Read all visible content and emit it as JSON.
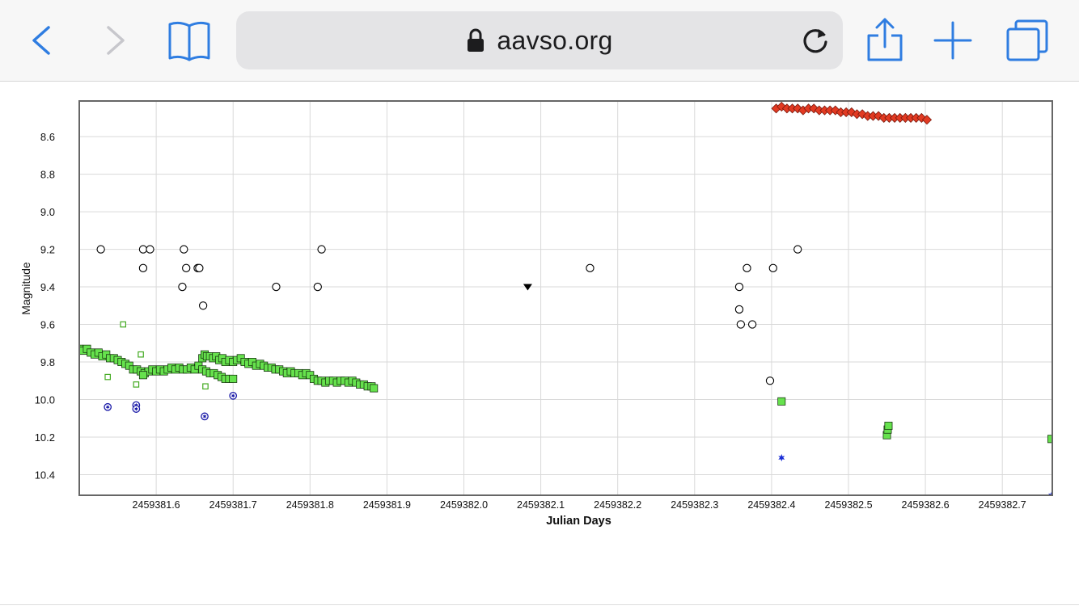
{
  "browser": {
    "url": "aavso.org",
    "icons": {
      "back": "chevron-left-icon",
      "forward": "chevron-right-icon",
      "bookmarks": "book-icon",
      "secure": "lock-icon",
      "reload": "reload-icon",
      "share": "share-icon",
      "new_tab": "plus-icon",
      "tabs": "tabs-icon"
    },
    "accent_color": "#2f7de1",
    "disabled_color": "#c7c7cc"
  },
  "chart_data": {
    "type": "scatter",
    "xlabel": "Julian Days",
    "ylabel": "Magnitude",
    "xlim": [
      2459381.5,
      2459382.765
    ],
    "ylim": [
      10.51,
      8.41
    ],
    "y_inverted": true,
    "grid": true,
    "x_ticks": [
      {
        "value": 2459381.6,
        "label": "2459381.6"
      },
      {
        "value": 2459381.7,
        "label": "2459381.7"
      },
      {
        "value": 2459381.8,
        "label": "2459381.8"
      },
      {
        "value": 2459381.9,
        "label": "2459381.9"
      },
      {
        "value": 2459382.0,
        "label": "2459382.0"
      },
      {
        "value": 2459382.1,
        "label": "2459382.1"
      },
      {
        "value": 2459382.2,
        "label": "2459382.2"
      },
      {
        "value": 2459382.3,
        "label": "2459382.3"
      },
      {
        "value": 2459382.4,
        "label": "2459382.4"
      },
      {
        "value": 2459382.5,
        "label": "2459382.5"
      },
      {
        "value": 2459382.6,
        "label": "2459382.6"
      },
      {
        "value": 2459382.7,
        "label": "2459382.7"
      }
    ],
    "y_ticks": [
      {
        "value": 8.6,
        "label": "8.6"
      },
      {
        "value": 8.8,
        "label": "8.8"
      },
      {
        "value": 9.0,
        "label": "9.0"
      },
      {
        "value": 9.2,
        "label": "9.2"
      },
      {
        "value": 9.4,
        "label": "9.4"
      },
      {
        "value": 9.6,
        "label": "9.6"
      },
      {
        "value": 9.8,
        "label": "9.8"
      },
      {
        "value": 10.0,
        "label": "10.0"
      },
      {
        "value": 10.2,
        "label": "10.2"
      },
      {
        "value": 10.4,
        "label": "10.4"
      }
    ],
    "series": [
      {
        "marker": "open-circle",
        "color": "#000000",
        "points": [
          [
            2459381.528,
            9.2
          ],
          [
            2459381.583,
            9.2
          ],
          [
            2459381.592,
            9.2
          ],
          [
            2459381.636,
            9.2
          ],
          [
            2459381.583,
            9.3
          ],
          [
            2459381.639,
            9.3
          ],
          [
            2459381.654,
            9.3
          ],
          [
            2459381.656,
            9.3
          ],
          [
            2459381.634,
            9.4
          ],
          [
            2459381.661,
            9.5
          ],
          [
            2459381.756,
            9.4
          ],
          [
            2459381.81,
            9.4
          ],
          [
            2459381.815,
            9.2
          ],
          [
            2459382.164,
            9.3
          ],
          [
            2459382.358,
            9.4
          ],
          [
            2459382.358,
            9.52
          ],
          [
            2459382.36,
            9.6
          ],
          [
            2459382.368,
            9.3
          ],
          [
            2459382.375,
            9.6
          ],
          [
            2459382.398,
            9.9
          ],
          [
            2459382.402,
            9.3
          ],
          [
            2459382.434,
            9.2
          ]
        ]
      },
      {
        "marker": "filled-triangle-down",
        "color": "#000000",
        "points": [
          [
            2459382.083,
            9.4
          ]
        ]
      },
      {
        "marker": "open-square",
        "color": "#44aa22",
        "points": [
          [
            2459381.557,
            9.6
          ],
          [
            2459381.537,
            9.88
          ],
          [
            2459381.574,
            9.92
          ],
          [
            2459381.58,
            9.76
          ],
          [
            2459381.664,
            9.93
          ]
        ]
      },
      {
        "marker": "circled-star",
        "color": "#1a1aa8",
        "points": [
          [
            2459381.537,
            10.04
          ],
          [
            2459381.574,
            10.03
          ],
          [
            2459381.574,
            10.05
          ],
          [
            2459381.663,
            10.09
          ],
          [
            2459381.7,
            9.98
          ]
        ]
      },
      {
        "marker": "filled-star",
        "color": "#1b2fd6",
        "points": [
          [
            2459382.413,
            10.31
          ],
          [
            2459382.764,
            10.51
          ]
        ]
      },
      {
        "marker": "filled-square",
        "color": "#66e24d",
        "points": [
          [
            2459381.5,
            9.73
          ],
          [
            2459381.505,
            9.74
          ],
          [
            2459381.51,
            9.73
          ],
          [
            2459381.515,
            9.75
          ],
          [
            2459381.52,
            9.76
          ],
          [
            2459381.525,
            9.75
          ],
          [
            2459381.53,
            9.77
          ],
          [
            2459381.535,
            9.76
          ],
          [
            2459381.54,
            9.78
          ],
          [
            2459381.545,
            9.78
          ],
          [
            2459381.55,
            9.79
          ],
          [
            2459381.555,
            9.8
          ],
          [
            2459381.56,
            9.81
          ],
          [
            2459381.565,
            9.82
          ],
          [
            2459381.57,
            9.84
          ],
          [
            2459381.575,
            9.84
          ],
          [
            2459381.58,
            9.85
          ],
          [
            2459381.585,
            9.86
          ],
          [
            2459381.59,
            9.85
          ],
          [
            2459381.595,
            9.84
          ],
          [
            2459381.6,
            9.85
          ],
          [
            2459381.605,
            9.84
          ],
          [
            2459381.61,
            9.85
          ],
          [
            2459381.615,
            9.84
          ],
          [
            2459381.62,
            9.83
          ],
          [
            2459381.625,
            9.84
          ],
          [
            2459381.63,
            9.83
          ],
          [
            2459381.635,
            9.84
          ],
          [
            2459381.64,
            9.84
          ],
          [
            2459381.645,
            9.83
          ],
          [
            2459381.65,
            9.84
          ],
          [
            2459381.655,
            9.82
          ],
          [
            2459381.66,
            9.78
          ],
          [
            2459381.663,
            9.76
          ],
          [
            2459381.666,
            9.77
          ],
          [
            2459381.67,
            9.77
          ],
          [
            2459381.674,
            9.78
          ],
          [
            2459381.678,
            9.77
          ],
          [
            2459381.682,
            9.79
          ],
          [
            2459381.686,
            9.78
          ],
          [
            2459381.69,
            9.8
          ],
          [
            2459381.695,
            9.79
          ],
          [
            2459381.7,
            9.8
          ],
          [
            2459381.705,
            9.79
          ],
          [
            2459381.71,
            9.78
          ],
          [
            2459381.715,
            9.8
          ],
          [
            2459381.72,
            9.81
          ],
          [
            2459381.725,
            9.8
          ],
          [
            2459381.73,
            9.82
          ],
          [
            2459381.735,
            9.81
          ],
          [
            2459381.74,
            9.82
          ],
          [
            2459381.745,
            9.83
          ],
          [
            2459381.75,
            9.83
          ],
          [
            2459381.755,
            9.84
          ],
          [
            2459381.76,
            9.84
          ],
          [
            2459381.765,
            9.85
          ],
          [
            2459381.77,
            9.86
          ],
          [
            2459381.775,
            9.85
          ],
          [
            2459381.78,
            9.86
          ],
          [
            2459381.785,
            9.86
          ],
          [
            2459381.79,
            9.87
          ],
          [
            2459381.795,
            9.86
          ],
          [
            2459381.8,
            9.87
          ],
          [
            2459381.805,
            9.89
          ],
          [
            2459381.81,
            9.9
          ],
          [
            2459381.815,
            9.9
          ],
          [
            2459381.82,
            9.91
          ],
          [
            2459381.825,
            9.9
          ],
          [
            2459381.83,
            9.9
          ],
          [
            2459381.835,
            9.91
          ],
          [
            2459381.84,
            9.9
          ],
          [
            2459381.845,
            9.9
          ],
          [
            2459381.85,
            9.91
          ],
          [
            2459381.855,
            9.9
          ],
          [
            2459381.86,
            9.91
          ],
          [
            2459381.865,
            9.92
          ],
          [
            2459381.87,
            9.92
          ],
          [
            2459381.875,
            9.93
          ],
          [
            2459381.88,
            9.93
          ],
          [
            2459381.883,
            9.94
          ],
          [
            2459381.66,
            9.84
          ],
          [
            2459381.665,
            9.85
          ],
          [
            2459381.67,
            9.86
          ],
          [
            2459381.675,
            9.86
          ],
          [
            2459381.68,
            9.87
          ],
          [
            2459381.685,
            9.88
          ],
          [
            2459381.69,
            9.89
          ],
          [
            2459381.695,
            9.89
          ],
          [
            2459381.7,
            9.89
          ],
          [
            2459381.583,
            9.87
          ],
          [
            2459382.413,
            10.01
          ],
          [
            2459382.55,
            10.19
          ],
          [
            2459382.551,
            10.16
          ],
          [
            2459382.552,
            10.14
          ],
          [
            2459382.764,
            10.21
          ]
        ]
      },
      {
        "marker": "filled-diamond",
        "color": "#e23a22",
        "points": [
          [
            2459382.406,
            8.45
          ],
          [
            2459382.413,
            8.44
          ],
          [
            2459382.42,
            8.45
          ],
          [
            2459382.427,
            8.45
          ],
          [
            2459382.434,
            8.45
          ],
          [
            2459382.441,
            8.46
          ],
          [
            2459382.448,
            8.45
          ],
          [
            2459382.455,
            8.45
          ],
          [
            2459382.462,
            8.46
          ],
          [
            2459382.469,
            8.46
          ],
          [
            2459382.476,
            8.46
          ],
          [
            2459382.483,
            8.46
          ],
          [
            2459382.49,
            8.47
          ],
          [
            2459382.497,
            8.47
          ],
          [
            2459382.504,
            8.47
          ],
          [
            2459382.511,
            8.48
          ],
          [
            2459382.518,
            8.48
          ],
          [
            2459382.525,
            8.49
          ],
          [
            2459382.532,
            8.49
          ],
          [
            2459382.539,
            8.49
          ],
          [
            2459382.546,
            8.5
          ],
          [
            2459382.553,
            8.5
          ],
          [
            2459382.56,
            8.5
          ],
          [
            2459382.567,
            8.5
          ],
          [
            2459382.574,
            8.5
          ],
          [
            2459382.581,
            8.5
          ],
          [
            2459382.588,
            8.5
          ],
          [
            2459382.595,
            8.5
          ],
          [
            2459382.602,
            8.51
          ]
        ]
      }
    ]
  }
}
